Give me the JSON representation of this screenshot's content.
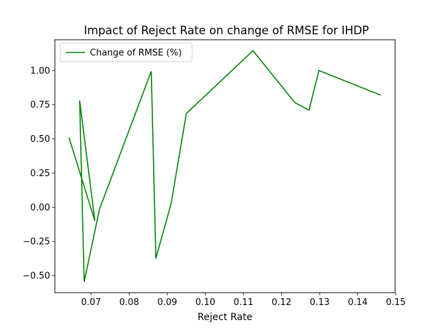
{
  "chart_data": {
    "type": "line",
    "title": "Impact of Reject Rate on change of RMSE for IHDP",
    "xlabel": "Reject Rate",
    "ylabel": "",
    "xlim": [
      0.0605,
      0.1498
    ],
    "ylim": [
      -0.625,
      1.225
    ],
    "xticks": [
      0.07,
      0.08,
      0.09,
      0.1,
      0.11,
      0.12,
      0.13,
      0.14,
      0.15
    ],
    "xtick_labels": [
      "0.07",
      "0.08",
      "0.09",
      "0.10",
      "0.11",
      "0.12",
      "0.13",
      "0.14",
      "0.15"
    ],
    "yticks": [
      -0.5,
      -0.25,
      0.0,
      0.25,
      0.5,
      0.75,
      1.0
    ],
    "ytick_labels": [
      "−0.50",
      "−0.25",
      "0.00",
      "0.25",
      "0.50",
      "0.75",
      "1.00"
    ],
    "grid": false,
    "legend_position": "top-left",
    "series": [
      {
        "name": "Change of RMSE (%)",
        "color": "#008000",
        "x": [
          0.0642,
          0.071,
          0.067,
          0.0682,
          0.0722,
          0.0858,
          0.087,
          0.091,
          0.095,
          0.1125,
          0.1235,
          0.1272,
          0.1298,
          0.146
        ],
        "y": [
          0.51,
          -0.1,
          0.78,
          -0.545,
          -0.015,
          0.995,
          -0.375,
          0.025,
          0.685,
          1.145,
          0.765,
          0.71,
          1.0,
          0.82
        ]
      }
    ]
  }
}
